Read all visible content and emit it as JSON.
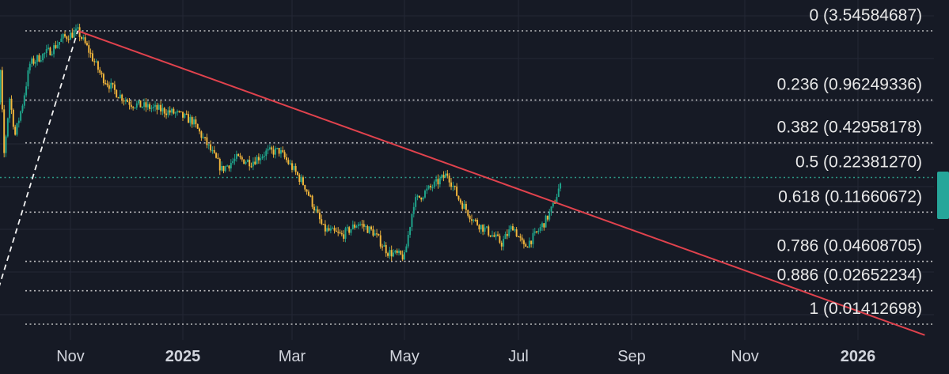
{
  "chart_data": {
    "type": "candlestick",
    "x_axis": {
      "tick_labels": [
        {
          "label": "Nov",
          "date": "2024-11-01"
        },
        {
          "label": "2025",
          "date": "2025-01-01"
        },
        {
          "label": "Mar",
          "date": "2025-03-01"
        },
        {
          "label": "May",
          "date": "2025-05-01"
        },
        {
          "label": "Jul",
          "date": "2025-07-01"
        },
        {
          "label": "Sep",
          "date": "2025-09-01"
        },
        {
          "label": "Nov",
          "date": "2025-11-01"
        },
        {
          "label": "2026",
          "date": "2026-01-01"
        }
      ],
      "range": [
        "2024-09-15",
        "2026-03-01"
      ]
    },
    "y_axis": {
      "scale": "log",
      "range": [
        0.0097,
        6.5
      ]
    },
    "grid": true,
    "fib_levels": [
      {
        "ratio": "0",
        "price": "3.54584687"
      },
      {
        "ratio": "0.236",
        "price": "0.96249336"
      },
      {
        "ratio": "0.382",
        "price": "0.42958178"
      },
      {
        "ratio": "0.5",
        "price": "0.22381270"
      },
      {
        "ratio": "0.618",
        "price": "0.11660672"
      },
      {
        "ratio": "0.786",
        "price": "0.04608705"
      },
      {
        "ratio": "0.886",
        "price": "0.02652234"
      },
      {
        "ratio": "1",
        "price": "0.01412698"
      }
    ],
    "price_path": [
      [
        "2024-09-17",
        0.0141
      ],
      [
        "2024-09-18",
        0.06
      ],
      [
        "2024-09-19",
        0.3
      ],
      [
        "2024-09-20",
        1.8
      ],
      [
        "2024-09-22",
        0.5
      ],
      [
        "2024-09-24",
        1.6
      ],
      [
        "2024-09-26",
        0.35
      ],
      [
        "2024-09-29",
        1.0
      ],
      [
        "2024-10-02",
        0.5
      ],
      [
        "2024-10-06",
        0.9
      ],
      [
        "2024-10-10",
        1.9
      ],
      [
        "2024-10-16",
        2.2
      ],
      [
        "2024-10-22",
        2.5
      ],
      [
        "2024-10-28",
        3.1
      ],
      [
        "2024-11-05",
        3.5
      ],
      [
        "2024-11-10",
        2.6
      ],
      [
        "2024-11-18",
        1.5
      ],
      [
        "2024-11-26",
        1.1
      ],
      [
        "2024-12-04",
        0.9
      ],
      [
        "2024-12-12",
        0.85
      ],
      [
        "2024-12-20",
        0.8
      ],
      [
        "2024-12-28",
        0.75
      ],
      [
        "2025-01-06",
        0.65
      ],
      [
        "2025-01-14",
        0.42
      ],
      [
        "2025-01-22",
        0.26
      ],
      [
        "2025-01-30",
        0.32
      ],
      [
        "2025-02-07",
        0.3
      ],
      [
        "2025-02-15",
        0.36
      ],
      [
        "2025-02-22",
        0.37
      ],
      [
        "2025-03-01",
        0.27
      ],
      [
        "2025-03-08",
        0.19
      ],
      [
        "2025-03-18",
        0.085
      ],
      [
        "2025-03-28",
        0.075
      ],
      [
        "2025-04-06",
        0.095
      ],
      [
        "2025-04-14",
        0.08
      ],
      [
        "2025-04-22",
        0.055
      ],
      [
        "2025-05-01",
        0.05
      ],
      [
        "2025-05-06",
        0.14
      ],
      [
        "2025-05-12",
        0.17
      ],
      [
        "2025-05-18",
        0.2
      ],
      [
        "2025-05-24",
        0.24
      ],
      [
        "2025-05-30",
        0.15
      ],
      [
        "2025-06-07",
        0.1
      ],
      [
        "2025-06-15",
        0.08
      ],
      [
        "2025-06-22",
        0.065
      ],
      [
        "2025-06-28",
        0.09
      ],
      [
        "2025-07-04",
        0.06
      ],
      [
        "2025-07-10",
        0.075
      ],
      [
        "2025-07-16",
        0.1
      ],
      [
        "2025-07-20",
        0.13
      ],
      [
        "2025-07-24",
        0.2
      ]
    ],
    "trendline": {
      "start": [
        "2024-11-05",
        3.5458
      ],
      "end": [
        "2026-02-06",
        0.0115
      ]
    },
    "impulse_line": {
      "start": [
        "2024-09-17",
        0.0141
      ],
      "end": [
        "2024-11-05",
        3.5458
      ]
    },
    "last_price_marker": {
      "date": "2025-07-24",
      "price": 0.2
    }
  },
  "colors": {
    "background": "#161a25",
    "grid": "#242835",
    "up_candle": "#1fa58c",
    "down_candle": "#f4b73c",
    "fib_line": "#d9d9d9",
    "half_line": "#2fa892",
    "trendline": "#e0424d",
    "axis_text": "#d1d4dc",
    "label_text": "#e8e8e8",
    "price_marker": "#26a69a"
  }
}
